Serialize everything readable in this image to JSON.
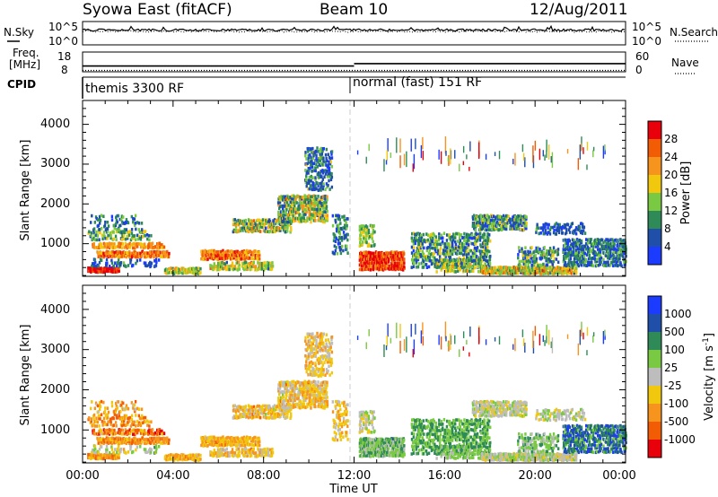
{
  "header": {
    "station": "Syowa East (fitACF)",
    "beam": "Beam 10",
    "date": "12/Aug/2011"
  },
  "noise_panel": {
    "left_label": "N.Sky",
    "right_label": "N.Search",
    "left_ticks": [
      "10^5",
      "10^0"
    ],
    "right_ticks": [
      "10^5",
      "10^0"
    ]
  },
  "freq_panel": {
    "left_label_1": "Freq.",
    "left_label_2": "[MHz]",
    "left_ticks": [
      "18",
      "8"
    ],
    "right_label": "Nave",
    "right_ticks": [
      "60",
      "0"
    ]
  },
  "cpid_panel": {
    "label": "CPID",
    "modes": [
      {
        "name": "themis 3300 RF",
        "start_hour": 0
      },
      {
        "name": "normal (fast) 151 RF",
        "start_hour": 12
      }
    ]
  },
  "axes": {
    "ylabel": "Slant Range [km]",
    "yticks": [
      "1000",
      "2000",
      "3000",
      "4000"
    ],
    "xlabel": "Time UT",
    "xticks": [
      "00:00",
      "04:00",
      "08:00",
      "12:00",
      "16:00",
      "20:00",
      "00:00"
    ]
  },
  "power_scale": {
    "label": "Power [dB]",
    "ticks": [
      "4",
      "8",
      "12",
      "16",
      "20",
      "24",
      "28"
    ],
    "colors": [
      "#1b3cff",
      "#1f4fa8",
      "#2e8b57",
      "#7ac943",
      "#f2c80f",
      "#f7941d",
      "#f25c05",
      "#e8000b"
    ]
  },
  "velocity_scale": {
    "label": "Velocity [m s",
    "label_sup": "-1",
    "label_end": "]",
    "ticks": [
      "1000",
      "500",
      "100",
      "25",
      "-25",
      "-100",
      "-500",
      "-1000"
    ],
    "colors": [
      "#1b3cff",
      "#1f4fa8",
      "#2e8b57",
      "#7ac943",
      "#bdbdbd",
      "#f2c80f",
      "#f7941d",
      "#f25c05",
      "#e8000b"
    ]
  },
  "chart_data": {
    "type": "heatmap",
    "xlim": [
      0,
      24
    ],
    "ylim": [
      180,
      4600
    ],
    "frequency_mhz": {
      "start": 11,
      "end": 12.5
    },
    "panels": [
      "power",
      "velocity"
    ],
    "regions": [
      {
        "t0": 0.2,
        "t1": 1.6,
        "r0": 240,
        "r1": 380,
        "dens": 0.95,
        "pw": [
          6,
          8,
          2
        ],
        "vl": [
          5,
          7,
          3
        ]
      },
      {
        "t0": 0.3,
        "t1": 3.4,
        "r0": 380,
        "r1": 600,
        "dens": 0.25,
        "pw": [
          0,
          2,
          5
        ],
        "vl": [
          3,
          5,
          4
        ]
      },
      {
        "t0": 0.6,
        "t1": 3.8,
        "r0": 620,
        "r1": 800,
        "dens": 0.9,
        "pw": [
          4,
          7,
          3
        ],
        "vl": [
          5,
          7,
          3
        ]
      },
      {
        "t0": 0.4,
        "t1": 3.6,
        "r0": 850,
        "r1": 1000,
        "dens": 0.7,
        "pw": [
          4,
          6,
          2
        ],
        "vl": [
          5,
          8,
          4
        ]
      },
      {
        "t0": 0.2,
        "t1": 3.0,
        "r0": 1050,
        "r1": 1300,
        "dens": 0.45,
        "pw": [
          1,
          4,
          4
        ],
        "vl": [
          5,
          7,
          3
        ]
      },
      {
        "t0": 0.3,
        "t1": 2.6,
        "r0": 1300,
        "r1": 1700,
        "dens": 0.25,
        "pw": [
          0,
          3,
          4
        ],
        "vl": [
          4,
          7,
          3
        ]
      },
      {
        "t0": 3.6,
        "t1": 5.2,
        "r0": 200,
        "r1": 380,
        "dens": 0.95,
        "pw": [
          2,
          5,
          3
        ],
        "vl": [
          5,
          6,
          4
        ]
      },
      {
        "t0": 5.6,
        "t1": 8.4,
        "r0": 300,
        "r1": 520,
        "dens": 0.6,
        "pw": [
          2,
          5,
          4
        ],
        "vl": [
          4,
          6,
          3
        ]
      },
      {
        "t0": 5.2,
        "t1": 7.8,
        "r0": 560,
        "r1": 820,
        "dens": 0.9,
        "pw": [
          4,
          7,
          3
        ],
        "vl": [
          5,
          6,
          4
        ]
      },
      {
        "t0": 6.6,
        "t1": 9.2,
        "r0": 1250,
        "r1": 1600,
        "dens": 0.7,
        "pw": [
          1,
          5,
          5
        ],
        "vl": [
          4,
          6,
          4
        ]
      },
      {
        "t0": 8.6,
        "t1": 10.8,
        "r0": 1500,
        "r1": 2200,
        "dens": 0.65,
        "pw": [
          1,
          5,
          5
        ],
        "vl": [
          4,
          6,
          4
        ]
      },
      {
        "t0": 9.8,
        "t1": 11.0,
        "r0": 2300,
        "r1": 3400,
        "dens": 0.45,
        "pw": [
          0,
          3,
          5
        ],
        "vl": [
          4,
          6,
          3
        ]
      },
      {
        "t0": 11.0,
        "t1": 11.7,
        "r0": 700,
        "r1": 1700,
        "dens": 0.35,
        "pw": [
          0,
          3,
          5
        ],
        "vl": [
          4,
          6,
          3
        ]
      },
      {
        "t0": 12.2,
        "t1": 14.2,
        "r0": 300,
        "r1": 780,
        "dens": 0.95,
        "pw": [
          5,
          8,
          3
        ],
        "vl": [
          2,
          4,
          3
        ]
      },
      {
        "t0": 12.2,
        "t1": 12.9,
        "r0": 900,
        "r1": 1450,
        "dens": 0.5,
        "pw": [
          2,
          4,
          2
        ],
        "vl": [
          3,
          5,
          2
        ]
      },
      {
        "t0": 14.5,
        "t1": 18.0,
        "r0": 350,
        "r1": 1250,
        "dens": 0.5,
        "pw": [
          0,
          4,
          3
        ],
        "vl": [
          2,
          3,
          2
        ]
      },
      {
        "t0": 15.6,
        "t1": 17.6,
        "r0": 250,
        "r1": 600,
        "dens": 0.55,
        "pw": [
          1,
          5,
          3
        ],
        "vl": [
          2,
          4,
          2
        ]
      },
      {
        "t0": 17.2,
        "t1": 19.6,
        "r0": 1300,
        "r1": 1700,
        "dens": 0.75,
        "pw": [
          0,
          4,
          4
        ],
        "vl": [
          3,
          5,
          3
        ]
      },
      {
        "t0": 17.6,
        "t1": 21.8,
        "r0": 200,
        "r1": 400,
        "dens": 0.9,
        "pw": [
          2,
          6,
          4
        ],
        "vl": [
          3,
          5,
          3
        ]
      },
      {
        "t0": 19.2,
        "t1": 21.0,
        "r0": 400,
        "r1": 900,
        "dens": 0.45,
        "pw": [
          0,
          4,
          4
        ],
        "vl": [
          2,
          4,
          3
        ]
      },
      {
        "t0": 21.2,
        "t1": 24.0,
        "r0": 400,
        "r1": 1100,
        "dens": 0.6,
        "pw": [
          0,
          3,
          3
        ],
        "vl": [
          0,
          3,
          3
        ]
      },
      {
        "t0": 20.0,
        "t1": 22.2,
        "r0": 1200,
        "r1": 1500,
        "dens": 0.4,
        "pw": [
          0,
          2,
          4
        ],
        "vl": [
          3,
          5,
          3
        ]
      }
    ]
  }
}
